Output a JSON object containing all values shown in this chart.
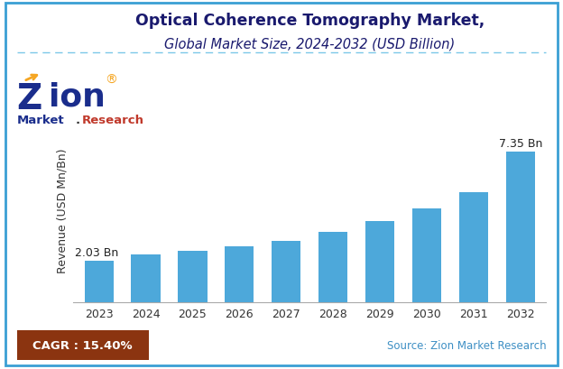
{
  "title_line1": "Optical Coherence Tomography Market,",
  "title_line2": "Global Market Size, 2024-2032 (USD Billion)",
  "years": [
    "2023",
    "2024",
    "2025",
    "2026",
    "2027",
    "2028",
    "2029",
    "2030",
    "2031",
    "2032"
  ],
  "values": [
    2.03,
    2.34,
    2.5,
    2.75,
    3.0,
    3.45,
    3.98,
    4.58,
    5.35,
    7.35
  ],
  "bar_color": "#4da8da",
  "ylabel": "Revenue (USD Mn/Bn)",
  "first_label": "2.03 Bn",
  "last_label": "7.35 Bn",
  "cagr_text": "CAGR : 15.40%",
  "cagr_bg": "#8B3410",
  "cagr_text_color": "#FFFFFF",
  "source_text": "Source: Zion Market Research",
  "source_color": "#3d8fc4",
  "title_color": "#1a1a6e",
  "subtitle_color": "#1a1a6e",
  "border_color": "#3a9fd4",
  "separator_color": "#7bc8e8",
  "background_color": "#FFFFFF",
  "ylim": [
    0,
    9.0
  ],
  "title_fontsize": 12.5,
  "subtitle_fontsize": 10.5,
  "axis_fontsize": 9,
  "label_fontsize": 9,
  "zion_Z_color": "#1a2d8c",
  "zion_ion_color": "#1a2d8c",
  "zion_arrow_color": "#f5a623",
  "zion_market_color": "#1a2d8c",
  "zion_research_color": "#c0392b"
}
